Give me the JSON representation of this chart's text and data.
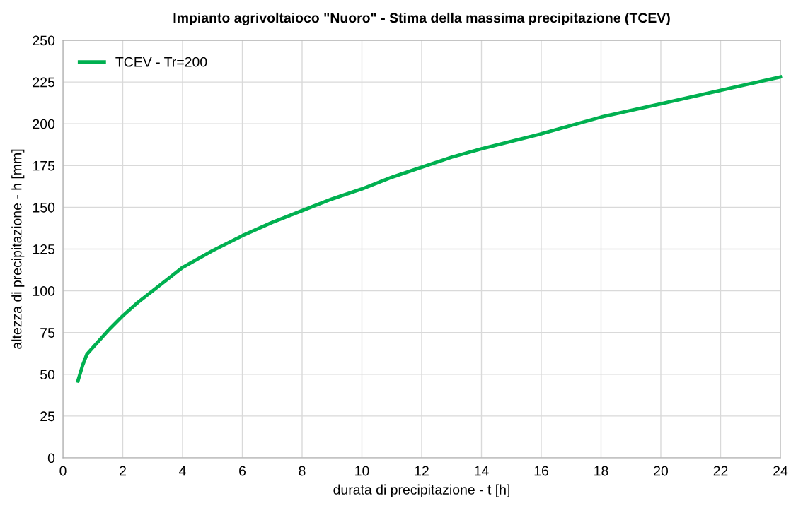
{
  "chart_data": {
    "type": "line",
    "title": "Impianto agrivoltaioco \"Nuoro\" - Stima della massima precipitazione (TCEV)",
    "xlabel": "durata di precipitazione - t [h]",
    "ylabel": "altezza di precipitazione - h [mm]",
    "x": [
      0.5,
      0.65,
      0.8,
      1,
      1.5,
      2,
      2.5,
      3,
      4,
      5,
      6,
      7,
      8,
      9,
      10,
      11,
      12,
      13,
      14,
      16,
      18,
      20,
      22,
      24
    ],
    "series": [
      {
        "name": "TCEV - Tr=200",
        "color": "#00b050",
        "values": [
          46,
          55,
          62,
          66,
          76,
          85,
          93,
          100,
          114,
          124,
          133,
          141,
          148,
          155,
          161,
          168,
          174,
          180,
          185,
          194,
          204,
          212,
          220,
          228
        ]
      }
    ],
    "xlim": [
      0,
      24
    ],
    "xticks": [
      0,
      2,
      4,
      6,
      8,
      10,
      12,
      14,
      16,
      18,
      20,
      22,
      24
    ],
    "ylim": [
      0,
      250
    ],
    "yticks": [
      0,
      25,
      50,
      75,
      100,
      125,
      150,
      175,
      200,
      225,
      250
    ],
    "grid": true,
    "legend": "top left",
    "marker": "none",
    "line_style": "solid"
  }
}
